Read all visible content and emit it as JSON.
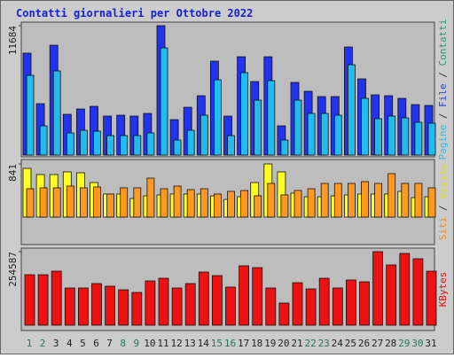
{
  "title": "Contatti giornalieri per Ottobre 2022",
  "chart_data": [
    {
      "type": "bar",
      "series": [
        {
          "name": "Contatti",
          "color": "#2233ee",
          "values": [
            9200,
            4640,
            9920,
            3680,
            4160,
            4400,
            3520,
            3600,
            3520,
            3760,
            11684,
            3200,
            4320,
            5360,
            8480,
            3520,
            8880,
            6640,
            8880,
            2640,
            6560,
            5760,
            5280,
            5280,
            9760,
            6880,
            5440,
            5360,
            5120,
            4560,
            4480
          ]
        },
        {
          "name": "Pagine",
          "color": "#22bbee",
          "values": [
            7200,
            2640,
            7600,
            2000,
            2240,
            2160,
            1760,
            1760,
            1760,
            2000,
            9680,
            1360,
            2240,
            3600,
            6800,
            1760,
            7440,
            4960,
            6720,
            1360,
            4960,
            3760,
            3760,
            3600,
            8160,
            5120,
            3280,
            3520,
            3360,
            2960,
            2880
          ]
        }
      ],
      "legend_parts": [
        {
          "text": "Pagine",
          "color": "#33bbdd"
        },
        {
          "text": " / ",
          "color": "#333333"
        },
        {
          "text": "File",
          "color": "#2244cc"
        },
        {
          "text": " / ",
          "color": "#333333"
        },
        {
          "text": "Contatti",
          "color": "#229977"
        }
      ],
      "ylim": [
        0,
        11684
      ],
      "yticks": [
        11684
      ]
    },
    {
      "type": "bar",
      "series": [
        {
          "name": "Visite",
          "color": "#ffff22",
          "values": [
            771,
            673,
            673,
            715,
            701,
            547,
            365,
            365,
            294,
            336,
            351,
            365,
            365,
            365,
            336,
            280,
            322,
            547,
            841,
            715,
            379,
            322,
            322,
            336,
            351,
            365,
            365,
            365,
            407,
            308,
            322
          ]
        },
        {
          "name": "Siti",
          "color": "#ff9922",
          "values": [
            449,
            463,
            463,
            491,
            463,
            477,
            365,
            463,
            463,
            617,
            449,
            491,
            435,
            449,
            365,
            407,
            421,
            337,
            533,
            351,
            421,
            449,
            533,
            533,
            533,
            561,
            533,
            687,
            533,
            533,
            463
          ]
        }
      ],
      "legend_parts": [
        {
          "text": "Siti",
          "color": "#ee8822"
        },
        {
          "text": " / ",
          "color": "#333333"
        },
        {
          "text": "Visite",
          "color": "#dddd22"
        }
      ],
      "ylim": [
        0,
        841
      ],
      "yticks": [
        841
      ]
    },
    {
      "type": "bar",
      "categories": [
        "1",
        "2",
        "3",
        "4",
        "5",
        "6",
        "7",
        "8",
        "9",
        "10",
        "11",
        "12",
        "13",
        "14",
        "15",
        "16",
        "17",
        "18",
        "19",
        "20",
        "21",
        "22",
        "23",
        "24",
        "25",
        "26",
        "27",
        "28",
        "29",
        "30",
        "31"
      ],
      "category_colors": [
        "#227755",
        "#227755",
        "#222222",
        "#222222",
        "#222222",
        "#222222",
        "#222222",
        "#227755",
        "#227755",
        "#222222",
        "#222222",
        "#222222",
        "#222222",
        "#222222",
        "#227755",
        "#227755",
        "#222222",
        "#222222",
        "#222222",
        "#222222",
        "#222222",
        "#227755",
        "#227755",
        "#222222",
        "#222222",
        "#222222",
        "#222222",
        "#222222",
        "#227755",
        "#227755",
        "#222222"
      ],
      "series": [
        {
          "name": "KBytes",
          "color": "#ee1111",
          "values": [
            174820,
            174820,
            187090,
            128810,
            128810,
            144150,
            134950,
            122680,
            113480,
            153350,
            162550,
            128810,
            144150,
            184020,
            171750,
            131880,
            205490,
            199350,
            128810,
            76680,
            147220,
            125750,
            162550,
            128810,
            156420,
            150280,
            254587,
            208560,
            248430,
            230030,
            187090
          ]
        }
      ],
      "legend_parts": [
        {
          "text": "KBytes",
          "color": "#dd1111"
        }
      ],
      "ylim": [
        0,
        254587
      ],
      "yticks": [
        254587
      ]
    }
  ]
}
